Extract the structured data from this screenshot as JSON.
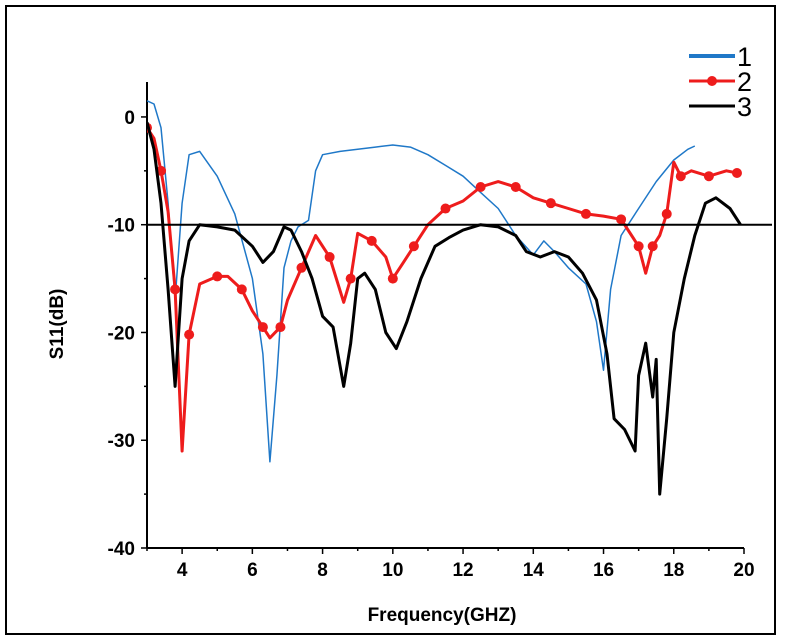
{
  "chart_data": {
    "type": "line",
    "xlabel": "Frequency(GHZ)",
    "ylabel": "S11(dB)",
    "xlim": [
      3,
      20
    ],
    "ylim": [
      -40,
      2.5
    ],
    "xticks": [
      4,
      6,
      8,
      10,
      12,
      14,
      16,
      18,
      20
    ],
    "yticks": [
      0,
      -10,
      -20,
      -30,
      -40
    ],
    "legend_position": "top-right",
    "reference_line": {
      "y": -10,
      "color": "#000000"
    },
    "series": [
      {
        "name": "1",
        "color": "#1f78c8",
        "marker": "none",
        "points": [
          [
            3.0,
            1.5
          ],
          [
            3.2,
            1.2
          ],
          [
            3.4,
            -1
          ],
          [
            3.6,
            -8
          ],
          [
            3.8,
            -17
          ],
          [
            4.0,
            -8
          ],
          [
            4.2,
            -3.5
          ],
          [
            4.5,
            -3.2
          ],
          [
            5.0,
            -5.5
          ],
          [
            5.5,
            -9
          ],
          [
            6.0,
            -15
          ],
          [
            6.3,
            -22
          ],
          [
            6.5,
            -32
          ],
          [
            6.7,
            -24
          ],
          [
            6.9,
            -14
          ],
          [
            7.1,
            -11.5
          ],
          [
            7.3,
            -10.2
          ],
          [
            7.6,
            -9.6
          ],
          [
            7.8,
            -5
          ],
          [
            8.0,
            -3.5
          ],
          [
            8.5,
            -3.2
          ],
          [
            9.0,
            -3
          ],
          [
            9.5,
            -2.8
          ],
          [
            10.0,
            -2.6
          ],
          [
            10.5,
            -2.8
          ],
          [
            11.0,
            -3.5
          ],
          [
            11.5,
            -4.5
          ],
          [
            12.0,
            -5.5
          ],
          [
            12.5,
            -7
          ],
          [
            13.0,
            -8.5
          ],
          [
            13.5,
            -11
          ],
          [
            14.0,
            -12.8
          ],
          [
            14.3,
            -11.5
          ],
          [
            14.6,
            -12.5
          ],
          [
            15.0,
            -14
          ],
          [
            15.5,
            -15.5
          ],
          [
            15.8,
            -19
          ],
          [
            16.0,
            -23.5
          ],
          [
            16.2,
            -16
          ],
          [
            16.5,
            -11
          ],
          [
            17.0,
            -8.5
          ],
          [
            17.5,
            -6
          ],
          [
            18.0,
            -4
          ],
          [
            18.4,
            -3
          ],
          [
            18.6,
            -2.7
          ]
        ]
      },
      {
        "name": "2",
        "color": "#ee1c1c",
        "marker": "circle",
        "points": [
          [
            3.0,
            -1
          ],
          [
            3.2,
            -2
          ],
          [
            3.4,
            -5
          ],
          [
            3.6,
            -8.8
          ],
          [
            3.8,
            -16
          ],
          [
            4.0,
            -31
          ],
          [
            4.2,
            -20.2
          ],
          [
            4.5,
            -15.5
          ],
          [
            5.0,
            -14.8
          ],
          [
            5.3,
            -14.8
          ],
          [
            5.7,
            -16
          ],
          [
            6.0,
            -18
          ],
          [
            6.3,
            -19.5
          ],
          [
            6.5,
            -20.5
          ],
          [
            6.8,
            -19.5
          ],
          [
            7.0,
            -17
          ],
          [
            7.4,
            -14
          ],
          [
            7.8,
            -11
          ],
          [
            8.2,
            -13
          ],
          [
            8.6,
            -17.2
          ],
          [
            8.8,
            -15
          ],
          [
            9.0,
            -10.8
          ],
          [
            9.4,
            -11.5
          ],
          [
            9.8,
            -13
          ],
          [
            10.0,
            -15
          ],
          [
            10.3,
            -13.5
          ],
          [
            10.6,
            -12
          ],
          [
            11.0,
            -10
          ],
          [
            11.5,
            -8.5
          ],
          [
            12.0,
            -7.8
          ],
          [
            12.5,
            -6.5
          ],
          [
            13.0,
            -6
          ],
          [
            13.5,
            -6.5
          ],
          [
            14.0,
            -7.5
          ],
          [
            14.5,
            -8
          ],
          [
            15.0,
            -8.5
          ],
          [
            15.5,
            -9
          ],
          [
            16.0,
            -9.2
          ],
          [
            16.5,
            -9.5
          ],
          [
            16.8,
            -11
          ],
          [
            17.0,
            -12
          ],
          [
            17.2,
            -14.5
          ],
          [
            17.4,
            -12
          ],
          [
            17.6,
            -11
          ],
          [
            17.8,
            -9
          ],
          [
            18.0,
            -4.2
          ],
          [
            18.2,
            -5.5
          ],
          [
            18.5,
            -5
          ],
          [
            19.0,
            -5.5
          ],
          [
            19.5,
            -5
          ],
          [
            19.8,
            -5.2
          ]
        ]
      },
      {
        "name": "3",
        "color": "#000000",
        "marker": "none",
        "points": [
          [
            3.0,
            -0.5
          ],
          [
            3.2,
            -3
          ],
          [
            3.4,
            -8
          ],
          [
            3.6,
            -16
          ],
          [
            3.8,
            -25
          ],
          [
            4.0,
            -15
          ],
          [
            4.2,
            -11.5
          ],
          [
            4.5,
            -10
          ],
          [
            5.0,
            -10.2
          ],
          [
            5.5,
            -10.5
          ],
          [
            6.0,
            -12
          ],
          [
            6.3,
            -13.5
          ],
          [
            6.6,
            -12.5
          ],
          [
            6.9,
            -10.2
          ],
          [
            7.1,
            -10.5
          ],
          [
            7.4,
            -12.5
          ],
          [
            7.7,
            -15
          ],
          [
            8.0,
            -18.5
          ],
          [
            8.3,
            -19.5
          ],
          [
            8.6,
            -25
          ],
          [
            8.8,
            -21
          ],
          [
            9.0,
            -15
          ],
          [
            9.2,
            -14.5
          ],
          [
            9.5,
            -16
          ],
          [
            9.8,
            -20
          ],
          [
            10.1,
            -21.5
          ],
          [
            10.4,
            -19
          ],
          [
            10.8,
            -15
          ],
          [
            11.2,
            -12
          ],
          [
            11.6,
            -11.2
          ],
          [
            12.0,
            -10.5
          ],
          [
            12.5,
            -10
          ],
          [
            13.0,
            -10.2
          ],
          [
            13.5,
            -11
          ],
          [
            13.8,
            -12.5
          ],
          [
            14.2,
            -13
          ],
          [
            14.6,
            -12.5
          ],
          [
            15.0,
            -13
          ],
          [
            15.4,
            -14.5
          ],
          [
            15.8,
            -17
          ],
          [
            16.1,
            -22
          ],
          [
            16.3,
            -28
          ],
          [
            16.6,
            -29
          ],
          [
            16.9,
            -31
          ],
          [
            17.0,
            -24
          ],
          [
            17.2,
            -21
          ],
          [
            17.4,
            -26
          ],
          [
            17.5,
            -22.5
          ],
          [
            17.6,
            -35
          ],
          [
            17.8,
            -28
          ],
          [
            18.0,
            -20
          ],
          [
            18.3,
            -15
          ],
          [
            18.6,
            -11
          ],
          [
            18.9,
            -8
          ],
          [
            19.2,
            -7.5
          ],
          [
            19.6,
            -8.5
          ],
          [
            19.9,
            -10
          ]
        ]
      }
    ]
  }
}
